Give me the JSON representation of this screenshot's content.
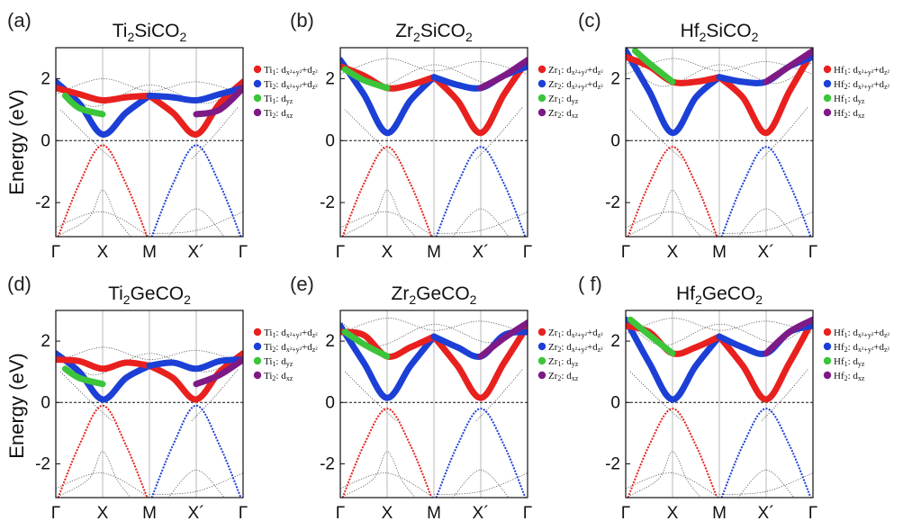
{
  "chart_data": {
    "type": "line",
    "ylabel": "Energy (eV)",
    "ylim": [
      -3.1,
      3.0
    ],
    "yticks": [
      2,
      0,
      -2
    ],
    "ytick_labels": [
      "2",
      "0",
      "-2"
    ],
    "xticks": [
      "Γ",
      "X",
      "M",
      "X´",
      "Γ"
    ],
    "xtick_positions": [
      0,
      0.5,
      1.0,
      1.5,
      2.0
    ],
    "panels": [
      {
        "label": "(a)",
        "title_base": "Ti",
        "title_sub": "2",
        "title_rest": "SiCO",
        "title_sub2": "2",
        "legend": [
          {
            "el": "Ti",
            "n": "1",
            "orb": "d",
            "sub": "x²+y²",
            "plus": "+d",
            "sub2": "z²",
            "color": "#e8201e"
          },
          {
            "el": "Ti",
            "n": "2",
            "orb": "d",
            "sub": "x²+y²",
            "plus": "+d",
            "sub2": "z²",
            "color": "#1c3fd6"
          },
          {
            "el": "Ti",
            "n": "1",
            "orb": "d",
            "sub": "yz",
            "plus": "",
            "sub2": "",
            "color": "#3cc53a"
          },
          {
            "el": "Ti",
            "n": "2",
            "orb": "d",
            "sub": "xz",
            "plus": "",
            "sub2": "",
            "color": "#7e1a86"
          }
        ],
        "vbm": -0.15,
        "cbm": 0.2,
        "m_point": 1.4,
        "red_band": [
          [
            0,
            1.7
          ],
          [
            0.25,
            1.5
          ],
          [
            0.5,
            1.3
          ],
          [
            0.75,
            1.4
          ],
          [
            1.0,
            1.45
          ]
        ],
        "blue_band": [
          [
            0,
            1.9
          ],
          [
            0.25,
            1.2
          ],
          [
            0.5,
            0.2
          ],
          [
            0.75,
            0.9
          ],
          [
            1.0,
            1.45
          ]
        ],
        "green_band": [
          [
            0.1,
            1.45
          ],
          [
            0.25,
            1.05
          ],
          [
            0.5,
            0.85
          ]
        ],
        "purple_band": [
          [
            1.5,
            0.85
          ],
          [
            1.75,
            1.0
          ],
          [
            2.0,
            1.7
          ]
        ]
      },
      {
        "label": "(b)",
        "title_base": "Zr",
        "title_sub": "2",
        "title_rest": "SiCO",
        "title_sub2": "2",
        "legend": [
          {
            "el": "Zr",
            "n": "1",
            "orb": "d",
            "sub": "x²+y²",
            "plus": "+d",
            "sub2": "z²",
            "color": "#e8201e"
          },
          {
            "el": "Zr",
            "n": "2",
            "orb": "d",
            "sub": "x²+y²",
            "plus": "+d",
            "sub2": "z²",
            "color": "#1c3fd6"
          },
          {
            "el": "Zr",
            "n": "1",
            "orb": "d",
            "sub": "yz",
            "plus": "",
            "sub2": "",
            "color": "#3cc53a"
          },
          {
            "el": "Zr",
            "n": "2",
            "orb": "d",
            "sub": "xz",
            "plus": "",
            "sub2": "",
            "color": "#7e1a86"
          }
        ],
        "vbm": -0.2,
        "cbm": 0.25,
        "m_point": 2.05,
        "red_band": [
          [
            0,
            2.4
          ],
          [
            0.25,
            2.1
          ],
          [
            0.5,
            1.7
          ],
          [
            0.75,
            1.8
          ],
          [
            1.0,
            2.05
          ]
        ],
        "blue_band": [
          [
            0,
            2.6
          ],
          [
            0.25,
            1.5
          ],
          [
            0.5,
            0.25
          ],
          [
            0.75,
            1.3
          ],
          [
            1.0,
            2.05
          ]
        ],
        "green_band": [
          [
            0.05,
            2.3
          ],
          [
            0.25,
            1.95
          ],
          [
            0.5,
            1.7
          ]
        ],
        "purple_band": [
          [
            1.5,
            1.7
          ],
          [
            1.75,
            2.1
          ],
          [
            2.0,
            2.6
          ]
        ]
      },
      {
        "label": "(c)",
        "title_base": "Hf",
        "title_sub": "2",
        "title_rest": "SiCO",
        "title_sub2": "2",
        "legend": [
          {
            "el": "Hf",
            "n": "1",
            "orb": "d",
            "sub": "x²+y²",
            "plus": "+d",
            "sub2": "z²",
            "color": "#e8201e"
          },
          {
            "el": "Hf",
            "n": "2",
            "orb": "d",
            "sub": "x²+y²",
            "plus": "+d",
            "sub2": "z²",
            "color": "#1c3fd6"
          },
          {
            "el": "Hf",
            "n": "1",
            "orb": "d",
            "sub": "yz",
            "plus": "",
            "sub2": "",
            "color": "#3cc53a"
          },
          {
            "el": "Hf",
            "n": "2",
            "orb": "d",
            "sub": "xz",
            "plus": "",
            "sub2": "",
            "color": "#7e1a86"
          }
        ],
        "vbm": -0.2,
        "cbm": 0.25,
        "m_point": 2.05,
        "red_band": [
          [
            0,
            2.7
          ],
          [
            0.25,
            2.4
          ],
          [
            0.5,
            1.9
          ],
          [
            0.75,
            1.9
          ],
          [
            1.0,
            2.05
          ]
        ],
        "blue_band": [
          [
            0,
            2.9
          ],
          [
            0.25,
            1.6
          ],
          [
            0.5,
            0.25
          ],
          [
            0.75,
            1.4
          ],
          [
            1.0,
            2.05
          ]
        ],
        "green_band": [
          [
            0.1,
            2.9
          ],
          [
            0.25,
            2.5
          ],
          [
            0.5,
            1.9
          ]
        ],
        "purple_band": [
          [
            1.5,
            1.9
          ],
          [
            1.75,
            2.4
          ],
          [
            2.0,
            2.9
          ]
        ]
      },
      {
        "label": "(d)",
        "title_base": "Ti",
        "title_sub": "2",
        "title_rest": "GeCO",
        "title_sub2": "2",
        "legend": [
          {
            "el": "Ti",
            "n": "1",
            "orb": "d",
            "sub": "x²+y²",
            "plus": "+d",
            "sub2": "z²",
            "color": "#e8201e"
          },
          {
            "el": "Ti",
            "n": "2",
            "orb": "d",
            "sub": "x²+y²",
            "plus": "+d",
            "sub2": "z²",
            "color": "#1c3fd6"
          },
          {
            "el": "Ti",
            "n": "1",
            "orb": "d",
            "sub": "yz",
            "plus": "",
            "sub2": "",
            "color": "#3cc53a"
          },
          {
            "el": "Ti",
            "n": "2",
            "orb": "d",
            "sub": "xz",
            "plus": "",
            "sub2": "",
            "color": "#7e1a86"
          }
        ],
        "vbm": -0.1,
        "cbm": 0.1,
        "m_point": 1.2,
        "red_band": [
          [
            0,
            1.4
          ],
          [
            0.25,
            1.35
          ],
          [
            0.5,
            1.1
          ],
          [
            0.75,
            1.3
          ],
          [
            1.0,
            1.2
          ]
        ],
        "blue_band": [
          [
            0,
            1.6
          ],
          [
            0.25,
            1.0
          ],
          [
            0.5,
            0.1
          ],
          [
            0.75,
            0.8
          ],
          [
            1.0,
            1.2
          ]
        ],
        "green_band": [
          [
            0.1,
            1.1
          ],
          [
            0.25,
            0.8
          ],
          [
            0.5,
            0.6
          ]
        ],
        "purple_band": [
          [
            1.5,
            0.6
          ],
          [
            1.75,
            0.9
          ],
          [
            2.0,
            1.4
          ]
        ]
      },
      {
        "label": "(e)",
        "title_base": "Zr",
        "title_sub": "2",
        "title_rest": "GeCO",
        "title_sub2": "2",
        "legend": [
          {
            "el": "Zr",
            "n": "1",
            "orb": "d",
            "sub": "x²+y²",
            "plus": "+d",
            "sub2": "z²",
            "color": "#e8201e"
          },
          {
            "el": "Zr",
            "n": "2",
            "orb": "d",
            "sub": "x²+y²",
            "plus": "+d",
            "sub2": "z²",
            "color": "#1c3fd6"
          },
          {
            "el": "Zr",
            "n": "1",
            "orb": "d",
            "sub": "yz",
            "plus": "",
            "sub2": "",
            "color": "#3cc53a"
          },
          {
            "el": "Zr",
            "n": "2",
            "orb": "d",
            "sub": "xz",
            "plus": "",
            "sub2": "",
            "color": "#7e1a86"
          }
        ],
        "vbm": -0.2,
        "cbm": 0.15,
        "m_point": 2.15,
        "red_band": [
          [
            0,
            2.3
          ],
          [
            0.25,
            2.2
          ],
          [
            0.5,
            1.5
          ],
          [
            0.75,
            1.8
          ],
          [
            1.0,
            2.15
          ]
        ],
        "blue_band": [
          [
            0,
            2.5
          ],
          [
            0.25,
            1.3
          ],
          [
            0.5,
            0.15
          ],
          [
            0.75,
            1.2
          ],
          [
            1.0,
            2.15
          ]
        ],
        "green_band": [
          [
            0.05,
            2.3
          ],
          [
            0.25,
            1.9
          ],
          [
            0.5,
            1.5
          ]
        ],
        "purple_band": [
          [
            1.5,
            1.5
          ],
          [
            1.75,
            2.1
          ],
          [
            2.0,
            2.6
          ]
        ]
      },
      {
        "label": "( f)",
        "title_base": "Hf",
        "title_sub": "2",
        "title_rest": "GeCO",
        "title_sub2": "2",
        "legend": [
          {
            "el": "Hf",
            "n": "1",
            "orb": "d",
            "sub": "x²+y²",
            "plus": "+d",
            "sub2": "z²",
            "color": "#e8201e"
          },
          {
            "el": "Hf",
            "n": "2",
            "orb": "d",
            "sub": "x²+y²",
            "plus": "+d",
            "sub2": "z²",
            "color": "#1c3fd6"
          },
          {
            "el": "Hf",
            "n": "1",
            "orb": "d",
            "sub": "yz",
            "plus": "",
            "sub2": "",
            "color": "#3cc53a"
          },
          {
            "el": "Hf",
            "n": "2",
            "orb": "d",
            "sub": "xz",
            "plus": "",
            "sub2": "",
            "color": "#7e1a86"
          }
        ],
        "vbm": -0.2,
        "cbm": 0.1,
        "m_point": 2.15,
        "red_band": [
          [
            0,
            2.5
          ],
          [
            0.25,
            2.3
          ],
          [
            0.5,
            1.6
          ],
          [
            0.75,
            1.8
          ],
          [
            1.0,
            2.15
          ]
        ],
        "blue_band": [
          [
            0,
            2.7
          ],
          [
            0.25,
            1.3
          ],
          [
            0.5,
            0.1
          ],
          [
            0.75,
            1.2
          ],
          [
            1.0,
            2.15
          ]
        ],
        "green_band": [
          [
            0.05,
            2.7
          ],
          [
            0.25,
            2.2
          ],
          [
            0.5,
            1.6
          ]
        ],
        "purple_band": [
          [
            1.5,
            1.6
          ],
          [
            1.75,
            2.3
          ],
          [
            2.0,
            2.7
          ]
        ]
      }
    ],
    "colors": {
      "red": "#e8201e",
      "blue": "#1c3fd6",
      "green": "#3cc53a",
      "purple": "#7e1a86",
      "thin": "#555555"
    }
  }
}
